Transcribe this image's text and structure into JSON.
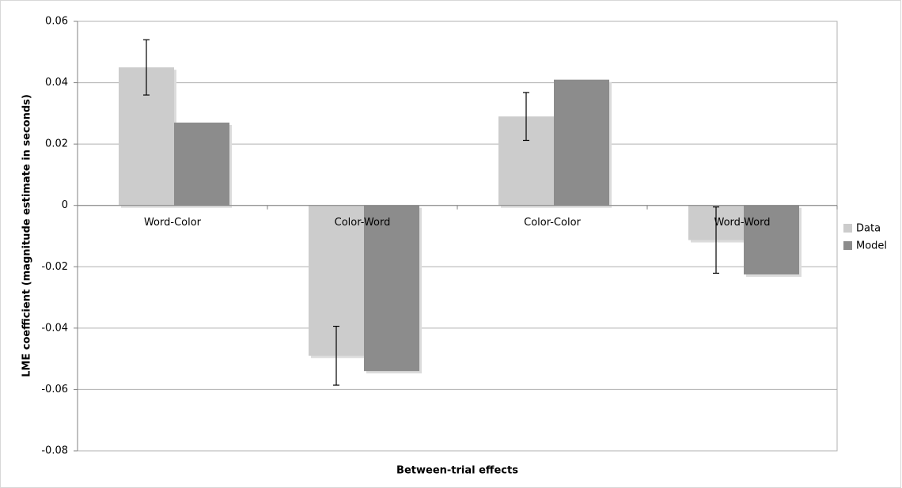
{
  "chart_data": {
    "type": "bar",
    "y_label": "LME coefficient (magnitude estimate in seconds)",
    "x_label": "Between-trial effects",
    "categories": [
      "Word-Color",
      "Color-Word",
      "Color-Color",
      "Word-Word"
    ],
    "series": [
      {
        "name": "Data",
        "color": "#cccccc",
        "values": [
          0.045,
          -0.049,
          0.029,
          -0.0113
        ],
        "errors": [
          0.009,
          0.0096,
          0.0078,
          0.0108
        ]
      },
      {
        "name": "Model",
        "color": "#8c8c8c",
        "values": [
          0.027,
          -0.054,
          0.041,
          -0.0225
        ]
      }
    ],
    "ylim": [
      -0.08,
      0.06
    ],
    "yticks": [
      -0.08,
      -0.06,
      -0.04,
      -0.02,
      0,
      0.02,
      0.04,
      0.06
    ],
    "grid": true,
    "legend": "right"
  }
}
